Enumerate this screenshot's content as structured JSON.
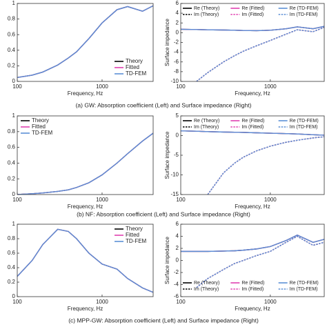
{
  "chart_data": [
    {
      "type": "line",
      "xlabel": "Frequency, Hz",
      "xscale": "log",
      "xlim": [
        100,
        4000
      ],
      "xticks": [
        100,
        1000
      ],
      "ylim": [
        0,
        1
      ],
      "yticks": [
        0,
        0.2,
        0.4,
        0.6,
        0.8,
        1
      ],
      "legend": "lower right",
      "legend_columns": 1,
      "x": [
        100,
        150,
        200,
        300,
        400,
        500,
        700,
        1000,
        1500,
        2000,
        3000,
        4000
      ],
      "series": [
        {
          "name": "Theory",
          "color": "#000000",
          "style": "solid",
          "values": [
            0.05,
            0.08,
            0.12,
            0.21,
            0.3,
            0.38,
            0.55,
            0.75,
            0.92,
            0.96,
            0.9,
            0.97
          ]
        },
        {
          "name": "Fitted",
          "color": "#e040b0",
          "style": "solid",
          "values": [
            0.05,
            0.08,
            0.12,
            0.21,
            0.3,
            0.38,
            0.55,
            0.75,
            0.92,
            0.96,
            0.9,
            0.97
          ]
        },
        {
          "name": "TD-FEM",
          "color": "#5b8fd6",
          "style": "solid",
          "values": [
            0.05,
            0.08,
            0.12,
            0.21,
            0.3,
            0.38,
            0.55,
            0.75,
            0.92,
            0.96,
            0.9,
            0.97
          ]
        }
      ]
    },
    {
      "type": "line",
      "xlabel": "Frequency, Hz",
      "ylabel": "Surface impedance",
      "xscale": "log",
      "xlim": [
        100,
        4000
      ],
      "xticks": [
        100,
        1000
      ],
      "ylim": [
        -10,
        6
      ],
      "yticks": [
        -10,
        -8,
        -6,
        -4,
        -2,
        0,
        2,
        4,
        6
      ],
      "legend": "upper center",
      "legend_columns": 3,
      "x": [
        100,
        150,
        200,
        300,
        400,
        500,
        700,
        1000,
        1500,
        2000,
        3000,
        4000
      ],
      "series": [
        {
          "name": "Re (Theory)",
          "color": "#000000",
          "style": "solid",
          "values": [
            0.7,
            0.65,
            0.6,
            0.55,
            0.5,
            0.45,
            0.42,
            0.5,
            0.8,
            1.2,
            0.8,
            1.3
          ]
        },
        {
          "name": "Re (Fitted)",
          "color": "#e040b0",
          "style": "solid",
          "values": [
            0.7,
            0.65,
            0.6,
            0.55,
            0.5,
            0.45,
            0.42,
            0.5,
            0.8,
            1.2,
            0.8,
            1.3
          ]
        },
        {
          "name": "Re (TD-FEM)",
          "color": "#5b8fd6",
          "style": "solid",
          "values": [
            0.7,
            0.65,
            0.6,
            0.55,
            0.5,
            0.45,
            0.42,
            0.5,
            0.8,
            1.2,
            0.8,
            1.3
          ]
        },
        {
          "name": "Im (Theory)",
          "color": "#000000",
          "style": "dashed",
          "values": [
            null,
            -10,
            -8.2,
            -6,
            -4.7,
            -3.8,
            -2.7,
            -1.6,
            -0.3,
            0.6,
            0.2,
            1.1
          ]
        },
        {
          "name": "Im (Fitted)",
          "color": "#e040b0",
          "style": "dashed",
          "values": [
            null,
            -10,
            -8.2,
            -6,
            -4.7,
            -3.8,
            -2.7,
            -1.6,
            -0.3,
            0.6,
            0.2,
            1.1
          ]
        },
        {
          "name": "Im (TD-FEM)",
          "color": "#5b8fd6",
          "style": "dashed",
          "values": [
            null,
            -10,
            -8.2,
            -6,
            -4.7,
            -3.8,
            -2.7,
            -1.6,
            -0.3,
            0.6,
            0.2,
            1.1
          ]
        }
      ]
    },
    {
      "type": "line",
      "xlabel": "Frequency, Hz",
      "xscale": "log",
      "xlim": [
        100,
        4000
      ],
      "xticks": [
        100,
        1000
      ],
      "ylim": [
        0,
        1
      ],
      "yticks": [
        0,
        0.2,
        0.4,
        0.6,
        0.8,
        1
      ],
      "legend": "upper left",
      "legend_columns": 1,
      "x": [
        100,
        150,
        200,
        300,
        400,
        500,
        700,
        1000,
        1500,
        2000,
        3000,
        4000
      ],
      "series": [
        {
          "name": "Theory",
          "color": "#000000",
          "style": "solid",
          "values": [
            0.0,
            0.01,
            0.02,
            0.04,
            0.06,
            0.09,
            0.15,
            0.25,
            0.4,
            0.52,
            0.68,
            0.78
          ]
        },
        {
          "name": "Fitted",
          "color": "#e040b0",
          "style": "solid",
          "values": [
            0.0,
            0.01,
            0.02,
            0.04,
            0.06,
            0.09,
            0.15,
            0.25,
            0.4,
            0.52,
            0.68,
            0.78
          ]
        },
        {
          "name": "TD-FEM",
          "color": "#5b8fd6",
          "style": "solid",
          "values": [
            0.0,
            0.01,
            0.02,
            0.04,
            0.06,
            0.09,
            0.15,
            0.25,
            0.4,
            0.52,
            0.68,
            0.78
          ]
        }
      ]
    },
    {
      "type": "line",
      "xlabel": "Frequency, Hz",
      "ylabel": "Surface impedance",
      "xscale": "log",
      "xlim": [
        100,
        4000
      ],
      "xticks": [
        100,
        1000
      ],
      "ylim": [
        -15,
        5
      ],
      "yticks": [
        -15,
        -10,
        -5,
        0,
        5
      ],
      "legend": "upper center",
      "legend_columns": 3,
      "x": [
        100,
        150,
        200,
        300,
        400,
        500,
        700,
        1000,
        1500,
        2000,
        3000,
        4000
      ],
      "series": [
        {
          "name": "Re (Theory)",
          "color": "#000000",
          "style": "solid",
          "values": [
            1.2,
            1.1,
            1.0,
            0.9,
            0.85,
            0.8,
            0.7,
            0.6,
            0.5,
            0.4,
            0.2,
            0.1
          ]
        },
        {
          "name": "Re (Fitted)",
          "color": "#e040b0",
          "style": "solid",
          "values": [
            1.2,
            1.1,
            1.0,
            0.9,
            0.85,
            0.8,
            0.7,
            0.6,
            0.5,
            0.4,
            0.2,
            0.1
          ]
        },
        {
          "name": "Re (TD-FEM)",
          "color": "#5b8fd6",
          "style": "solid",
          "values": [
            1.2,
            1.1,
            1.0,
            0.9,
            0.85,
            0.8,
            0.7,
            0.6,
            0.5,
            0.4,
            0.2,
            0.1
          ]
        },
        {
          "name": "Im (Theory)",
          "color": "#000000",
          "style": "dashed",
          "values": [
            null,
            null,
            -15,
            -9.5,
            -7,
            -5.5,
            -3.9,
            -2.7,
            -1.7,
            -1.2,
            -0.6,
            -0.3
          ]
        },
        {
          "name": "Im (Fitted)",
          "color": "#e040b0",
          "style": "dashed",
          "values": [
            null,
            null,
            -15,
            -9.5,
            -7,
            -5.5,
            -3.9,
            -2.7,
            -1.7,
            -1.2,
            -0.6,
            -0.3
          ]
        },
        {
          "name": "Im (TD-FEM)",
          "color": "#5b8fd6",
          "style": "dashed",
          "values": [
            null,
            null,
            -15,
            -9.5,
            -7,
            -5.5,
            -3.9,
            -2.7,
            -1.7,
            -1.2,
            -0.6,
            -0.3
          ]
        }
      ]
    },
    {
      "type": "line",
      "xlabel": "Frequency, Hz",
      "xscale": "log",
      "xlim": [
        100,
        4000
      ],
      "xticks": [
        100,
        1000
      ],
      "ylim": [
        0,
        1
      ],
      "yticks": [
        0,
        0.2,
        0.4,
        0.6,
        0.8,
        1
      ],
      "legend": "upper right",
      "legend_columns": 1,
      "x": [
        100,
        150,
        200,
        300,
        400,
        500,
        700,
        1000,
        1500,
        2000,
        3000,
        4000
      ],
      "series": [
        {
          "name": "Theory",
          "color": "#000000",
          "style": "solid",
          "values": [
            0.28,
            0.5,
            0.72,
            0.93,
            0.9,
            0.8,
            0.6,
            0.45,
            0.38,
            0.25,
            0.12,
            0.06
          ]
        },
        {
          "name": "Fitted",
          "color": "#e040b0",
          "style": "solid",
          "values": [
            0.28,
            0.5,
            0.72,
            0.93,
            0.9,
            0.8,
            0.6,
            0.45,
            0.38,
            0.25,
            0.12,
            0.06
          ]
        },
        {
          "name": "TD-FEM",
          "color": "#5b8fd6",
          "style": "solid",
          "values": [
            0.28,
            0.5,
            0.72,
            0.93,
            0.9,
            0.8,
            0.6,
            0.45,
            0.38,
            0.25,
            0.12,
            0.06
          ]
        }
      ]
    },
    {
      "type": "line",
      "xlabel": "Frequency, Hz",
      "ylabel": "Surface impedance",
      "xscale": "log",
      "xlim": [
        100,
        4000
      ],
      "xticks": [
        100,
        1000
      ],
      "ylim": [
        -6,
        6
      ],
      "yticks": [
        -6,
        -4,
        -2,
        0,
        2,
        4,
        6
      ],
      "legend": "lower center",
      "legend_columns": 3,
      "x": [
        100,
        150,
        200,
        300,
        400,
        500,
        700,
        1000,
        1500,
        2000,
        3000,
        4000
      ],
      "series": [
        {
          "name": "Re (Theory)",
          "color": "#000000",
          "style": "solid",
          "values": [
            1.5,
            1.5,
            1.5,
            1.55,
            1.6,
            1.7,
            1.9,
            2.3,
            3.3,
            4.2,
            3.0,
            3.5
          ]
        },
        {
          "name": "Re (Fitted)",
          "color": "#e040b0",
          "style": "solid",
          "values": [
            1.5,
            1.5,
            1.5,
            1.55,
            1.6,
            1.7,
            1.9,
            2.3,
            3.3,
            4.2,
            3.0,
            3.5
          ]
        },
        {
          "name": "Re (TD-FEM)",
          "color": "#5b8fd6",
          "style": "solid",
          "values": [
            1.5,
            1.5,
            1.5,
            1.55,
            1.6,
            1.7,
            1.9,
            2.3,
            3.3,
            4.2,
            3.0,
            3.5
          ]
        },
        {
          "name": "Im (Theory)",
          "color": "#000000",
          "style": "dashed",
          "values": [
            null,
            -4.5,
            -3,
            -1.5,
            -0.5,
            0,
            0.8,
            1.5,
            3,
            4,
            2.5,
            3
          ]
        },
        {
          "name": "Im (Fitted)",
          "color": "#e040b0",
          "style": "dashed",
          "values": [
            null,
            -4.5,
            -3,
            -1.5,
            -0.5,
            0,
            0.8,
            1.5,
            3,
            4,
            2.5,
            3
          ]
        },
        {
          "name": "Im (TD-FEM)",
          "color": "#5b8fd6",
          "style": "dashed",
          "values": [
            null,
            -4.5,
            -3,
            -1.5,
            -0.5,
            0,
            0.8,
            1.5,
            3,
            4,
            2.5,
            3
          ]
        }
      ]
    }
  ],
  "captions": [
    "(a) GW: Absorption coefficient (Left) and Surface impedance (Right)",
    "(b) NF: Absorption coefficient (Left) and Surface impedance (Right)",
    "(c) MPP-GW: Absorption coefficient (Left) and Surface impedance (Right)"
  ]
}
